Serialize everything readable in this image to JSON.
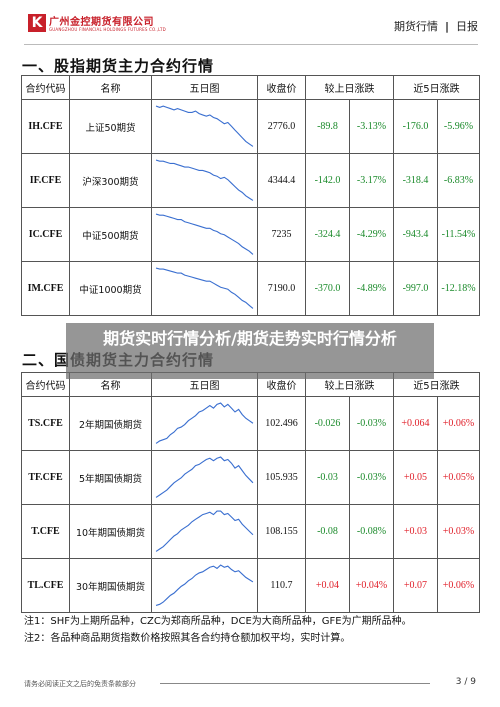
{
  "header": {
    "logo_mark": "K",
    "company_name": "广州金控期货有限公司",
    "company_name_en": "GUANGZHOU FINANCIAL HOLDINGS FUTURES CO.,LTD",
    "category": "期货行情",
    "separator": "|",
    "report_type": "日报"
  },
  "overlay_title": "期货实时行情分析/期货走势实时行情分析",
  "section1": {
    "title": "一、股指期货主力合约行情",
    "columns": [
      "合约代码",
      "名称",
      "五日图",
      "收盘价",
      "较上日涨跌",
      "近5日涨跌"
    ],
    "rows": [
      {
        "code": "IH.CFE",
        "name": "上证50期货",
        "close": "2776.0",
        "chg_pts": "-89.8",
        "chg_pct": "-3.13%",
        "chg5_pts": "-176.0",
        "chg5_pct": "-5.96%",
        "trend": [
          8,
          9,
          8,
          9,
          10,
          11,
          10,
          11,
          12,
          13,
          13,
          12,
          14,
          15,
          16,
          15,
          17,
          18,
          20,
          22,
          21,
          24,
          27,
          30,
          33,
          36,
          38,
          40
        ]
      },
      {
        "code": "IF.CFE",
        "name": "沪深300期货",
        "close": "4344.4",
        "chg_pts": "-142.0",
        "chg_pct": "-3.17%",
        "chg5_pts": "-318.4",
        "chg5_pct": "-6.83%",
        "trend": [
          6,
          7,
          7,
          8,
          9,
          9,
          10,
          11,
          12,
          12,
          13,
          14,
          15,
          15,
          16,
          17,
          19,
          20,
          22,
          21,
          23,
          26,
          29,
          32,
          34,
          37,
          39,
          41
        ]
      },
      {
        "code": "IC.CFE",
        "name": "中证500期货",
        "close": "7235",
        "chg_pts": "-324.4",
        "chg_pct": "-4.29%",
        "chg5_pts": "-943.4",
        "chg5_pct": "-11.54%",
        "trend": [
          5,
          6,
          6,
          7,
          8,
          9,
          10,
          10,
          12,
          13,
          14,
          15,
          16,
          17,
          18,
          18,
          20,
          21,
          23,
          24,
          26,
          28,
          30,
          32,
          35,
          37,
          39,
          42
        ]
      },
      {
        "code": "IM.CFE",
        "name": "中证1000期货",
        "close": "7190.0",
        "chg_pts": "-370.0",
        "chg_pct": "-4.89%",
        "chg5_pts": "-997.0",
        "chg5_pct": "-12.18%",
        "trend": [
          4,
          5,
          5,
          6,
          7,
          8,
          9,
          9,
          11,
          12,
          13,
          14,
          15,
          16,
          17,
          17,
          19,
          21,
          23,
          24,
          25,
          28,
          30,
          33,
          36,
          38,
          41,
          44
        ]
      }
    ]
  },
  "section2": {
    "title": "二、国债期货主力合约行情",
    "columns": [
      "合约代码",
      "名称",
      "五日图",
      "收盘价",
      "较上日涨跌",
      "近5日涨跌"
    ],
    "rows": [
      {
        "code": "TS.CFE",
        "name": "2年期国债期货",
        "close": "102.496",
        "chg_pts": "-0.026",
        "chg_pct": "-0.03%",
        "chg5_pts": "+0.064",
        "chg5_pct": "+0.06%",
        "trend": [
          40,
          38,
          37,
          36,
          33,
          31,
          28,
          27,
          25,
          22,
          20,
          18,
          15,
          14,
          12,
          10,
          12,
          9,
          8,
          11,
          9,
          12,
          15,
          13,
          17,
          20,
          22,
          24
        ]
      },
      {
        "code": "TF.CFE",
        "name": "5年期国债期货",
        "close": "105.935",
        "chg_pts": "-0.03",
        "chg_pct": "-0.03%",
        "chg5_pts": "+0.05",
        "chg5_pct": "+0.05%",
        "trend": [
          42,
          40,
          38,
          36,
          33,
          30,
          28,
          26,
          23,
          21,
          19,
          16,
          15,
          13,
          11,
          10,
          12,
          10,
          9,
          12,
          11,
          14,
          18,
          16,
          20,
          24,
          27,
          30
        ]
      },
      {
        "code": "T.CFE",
        "name": "10年期国债期货",
        "close": "108.155",
        "chg_pts": "-0.08",
        "chg_pct": "-0.08%",
        "chg5_pts": "+0.03",
        "chg5_pct": "+0.03%",
        "trend": [
          44,
          42,
          40,
          37,
          34,
          31,
          29,
          26,
          24,
          22,
          19,
          17,
          15,
          13,
          12,
          11,
          13,
          10,
          10,
          13,
          12,
          15,
          18,
          17,
          21,
          24,
          27,
          30
        ]
      },
      {
        "code": "TL.CFE",
        "name": "30年期国债期货",
        "close": "110.7",
        "chg_pts": "+0.04",
        "chg_pct": "+0.04%",
        "chg5_pts": "+0.07",
        "chg5_pct": "+0.06%",
        "trend": [
          44,
          43,
          41,
          38,
          35,
          33,
          30,
          27,
          25,
          22,
          20,
          17,
          15,
          14,
          12,
          10,
          9,
          11,
          8,
          10,
          9,
          12,
          14,
          13,
          16,
          19,
          21,
          23
        ]
      }
    ]
  },
  "notes": [
    "注1：SHF为上期所品种，CZC为郑商所品种，DCE为大商所品种，GFE为广期所品种。",
    "注2：各品种商品期货指数价格按照其各合约持仓额加权平均，实时计算。"
  ],
  "footer": {
    "disclaimer": "请务必阅读正文之后的免责条款部分",
    "page": "3 / 9"
  },
  "colors": {
    "brand": "#c8202a",
    "up": "#e0202a",
    "down": "#1a8a2a",
    "line": "#3a6fd0"
  }
}
